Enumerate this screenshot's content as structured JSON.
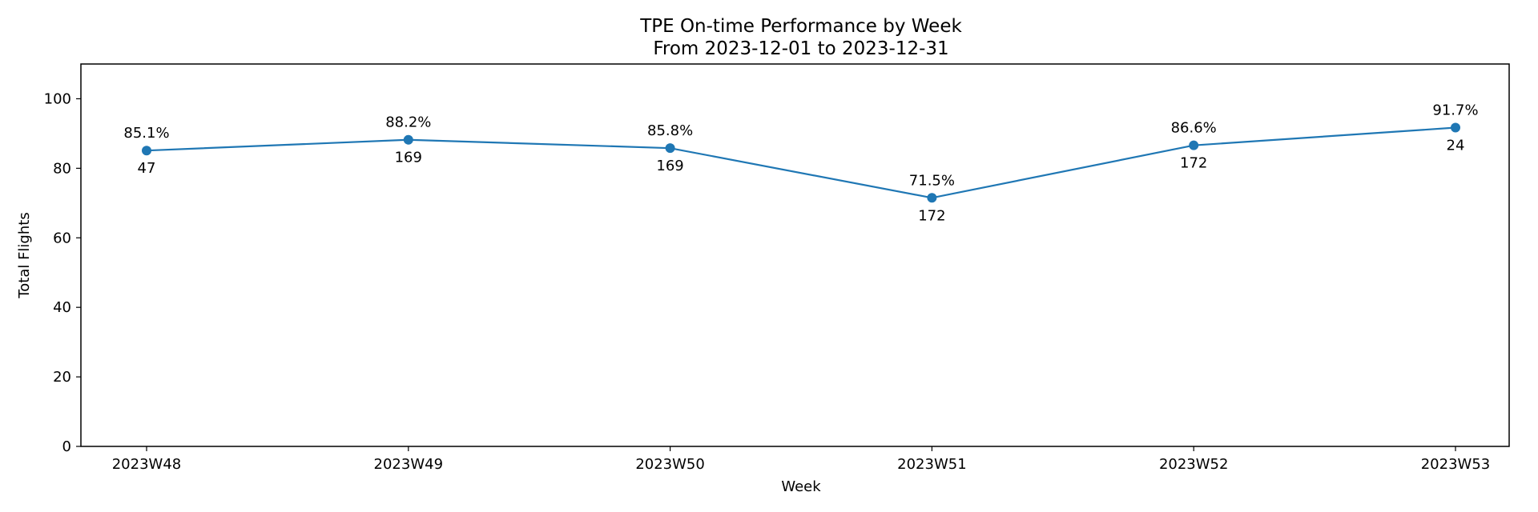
{
  "chart_data": {
    "type": "line",
    "title": "TPE On-time Performance by Week",
    "subtitle": "From 2023-12-01 to 2023-12-31",
    "xlabel": "Week",
    "ylabel": "Total Flights",
    "categories": [
      "2023W48",
      "2023W49",
      "2023W50",
      "2023W51",
      "2023W52",
      "2023W53"
    ],
    "series": [
      {
        "values": [
          85.1,
          88.2,
          85.8,
          71.5,
          86.6,
          91.7
        ],
        "labels_above": [
          "85.1%",
          "88.2%",
          "85.8%",
          "71.5%",
          "86.6%",
          "91.7%"
        ],
        "labels_below": [
          "47",
          "169",
          "169",
          "172",
          "172",
          "24"
        ],
        "color": "#1f77b4",
        "marker": "circle"
      }
    ],
    "ylim": [
      0,
      110
    ],
    "yticks": [
      "0",
      "20",
      "40",
      "60",
      "80",
      "100"
    ],
    "grid": false,
    "legend": "none"
  }
}
